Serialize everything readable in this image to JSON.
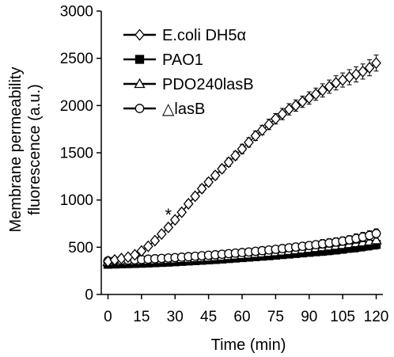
{
  "chart_data": {
    "type": "line",
    "xlabel": "Time (min)",
    "ylabel_lines": [
      "Membrane permeability",
      "fluorescence (a.u.)"
    ],
    "xlim": [
      -3,
      123
    ],
    "ylim": [
      0,
      3000
    ],
    "x_ticks": [
      0,
      15,
      30,
      45,
      60,
      75,
      90,
      105,
      120
    ],
    "x_tick_labels": [
      "0",
      "15",
      "30",
      "45",
      "60",
      "75",
      "90",
      "105",
      "120"
    ],
    "y_ticks": [
      0,
      500,
      1000,
      1500,
      2000,
      2500,
      3000
    ],
    "y_tick_labels": [
      "0",
      "500",
      "1000",
      "1500",
      "2000",
      "2500",
      "3000"
    ],
    "grid": false,
    "legend_position": "top-left",
    "annotation": {
      "text": "*",
      "x": 27,
      "y": 880
    },
    "x": [
      0,
      3,
      6,
      9,
      12,
      15,
      18,
      21,
      24,
      27,
      30,
      33,
      36,
      39,
      42,
      45,
      48,
      51,
      54,
      57,
      60,
      63,
      66,
      69,
      72,
      75,
      78,
      81,
      84,
      87,
      90,
      93,
      96,
      99,
      102,
      105,
      108,
      111,
      114,
      117,
      120
    ],
    "series": [
      {
        "name": "E.coli DH5α",
        "marker": "diamond",
        "fill": "#ffffff",
        "values": [
          350,
          365,
          380,
          395,
          420,
          460,
          510,
          570,
          640,
          710,
          790,
          870,
          960,
          1040,
          1120,
          1190,
          1260,
          1330,
          1400,
          1470,
          1540,
          1610,
          1680,
          1740,
          1800,
          1860,
          1910,
          1960,
          2000,
          2040,
          2080,
          2120,
          2160,
          2200,
          2240,
          2270,
          2300,
          2330,
          2360,
          2400,
          2450
        ],
        "error": [
          20,
          20,
          20,
          20,
          25,
          25,
          25,
          30,
          30,
          30,
          30,
          35,
          35,
          35,
          40,
          40,
          40,
          40,
          45,
          45,
          50,
          50,
          50,
          50,
          55,
          55,
          60,
          60,
          60,
          60,
          65,
          65,
          70,
          70,
          75,
          75,
          80,
          80,
          80,
          85,
          85
        ]
      },
      {
        "name": "PAO1",
        "marker": "square",
        "fill": "#000000",
        "values": [
          320,
          322,
          324,
          326,
          328,
          330,
          333,
          336,
          339,
          342,
          346,
          350,
          354,
          358,
          362,
          366,
          370,
          375,
          380,
          385,
          390,
          395,
          400,
          405,
          410,
          416,
          422,
          428,
          434,
          440,
          446,
          452,
          458,
          465,
          472,
          480,
          490,
          500,
          510,
          520,
          530
        ],
        "error": [
          30,
          30,
          30,
          30,
          30,
          30,
          30,
          30,
          30,
          30,
          30,
          30,
          30,
          30,
          30,
          30,
          35,
          35,
          35,
          35,
          35,
          35,
          35,
          35,
          35,
          40,
          40,
          40,
          40,
          40,
          40,
          40,
          45,
          45,
          45,
          45,
          45,
          50,
          50,
          50,
          50
        ]
      },
      {
        "name": "PDO240lasB",
        "marker": "triangle",
        "fill": "#ffffff",
        "values": [
          345,
          348,
          350,
          352,
          354,
          356,
          359,
          362,
          365,
          368,
          372,
          376,
          380,
          384,
          388,
          392,
          397,
          402,
          407,
          412,
          418,
          424,
          430,
          436,
          442,
          448,
          455,
          462,
          469,
          476,
          484,
          492,
          500,
          508,
          516,
          525,
          534,
          543,
          552,
          562,
          575
        ],
        "error": [
          30,
          30,
          30,
          30,
          30,
          30,
          30,
          30,
          30,
          30,
          30,
          30,
          30,
          30,
          30,
          30,
          35,
          35,
          35,
          35,
          35,
          35,
          35,
          35,
          35,
          40,
          40,
          40,
          40,
          40,
          40,
          40,
          45,
          45,
          45,
          45,
          45,
          50,
          50,
          50,
          50
        ]
      },
      {
        "name": "△lasB",
        "marker": "circle",
        "fill": "#ffffff",
        "values": [
          355,
          358,
          361,
          364,
          367,
          370,
          374,
          378,
          382,
          386,
          390,
          395,
          400,
          405,
          410,
          415,
          420,
          426,
          432,
          438,
          444,
          450,
          457,
          464,
          471,
          478,
          486,
          494,
          502,
          510,
          518,
          527,
          536,
          545,
          555,
          565,
          578,
          592,
          608,
          625,
          645
        ],
        "error": [
          30,
          30,
          30,
          30,
          30,
          30,
          30,
          30,
          30,
          30,
          30,
          30,
          30,
          30,
          30,
          30,
          35,
          35,
          35,
          35,
          35,
          35,
          35,
          35,
          35,
          40,
          40,
          40,
          40,
          40,
          40,
          40,
          45,
          45,
          45,
          45,
          45,
          50,
          50,
          50,
          50
        ]
      }
    ]
  }
}
